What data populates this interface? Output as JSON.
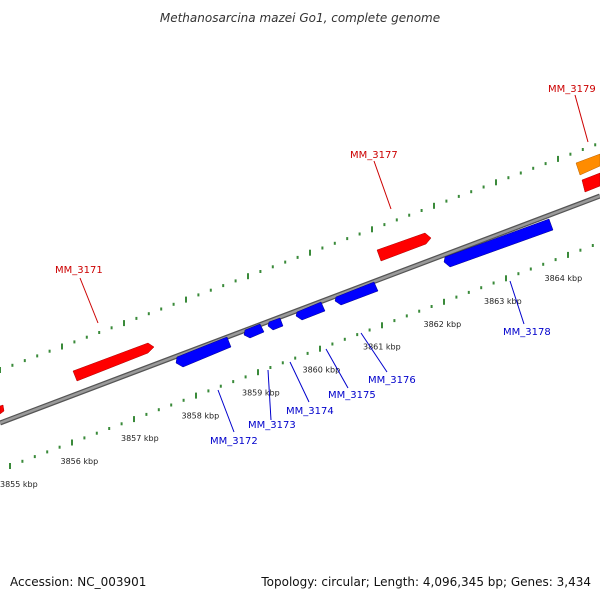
{
  "title": "Methanosarcina mazei Go1, complete genome",
  "footer": {
    "accession": "Accession: NC_003901",
    "summary": "Topology: circular; Length: 4,096,345 bp; Genes: 3,434"
  },
  "colors": {
    "backbone": "#888888",
    "forward_ticks": "#3a8a3a",
    "reverse_ticks": "#3a8a3a",
    "forward_gene": "#ff0000",
    "reverse_gene": "#0000ff",
    "highlight_gene": "#ff8c00",
    "forward_label": "#cc0000",
    "reverse_label": "#0000cc"
  },
  "scale_labels": [
    "3855 kbp",
    "3856 kbp",
    "3857 kbp",
    "3858 kbp",
    "3859 kbp",
    "3860 kbp",
    "3861 kbp",
    "3862 kbp",
    "3863 kbp",
    "3864 kbp"
  ],
  "genes": [
    {
      "id": "MM_3171",
      "strand": "forward",
      "label": "MM_3171"
    },
    {
      "id": "MM_3172",
      "strand": "reverse",
      "label": "MM_3172"
    },
    {
      "id": "MM_3173",
      "strand": "reverse",
      "label": "MM_3173"
    },
    {
      "id": "MM_3174",
      "strand": "reverse",
      "label": "MM_3174"
    },
    {
      "id": "MM_3175",
      "strand": "reverse",
      "label": "MM_3175"
    },
    {
      "id": "MM_3176",
      "strand": "reverse",
      "label": "MM_3176"
    },
    {
      "id": "MM_3177",
      "strand": "forward",
      "label": "MM_3177"
    },
    {
      "id": "MM_3178",
      "strand": "reverse",
      "label": "MM_3178"
    },
    {
      "id": "MM_3179",
      "strand": "forward",
      "label": "MM_3179"
    }
  ]
}
